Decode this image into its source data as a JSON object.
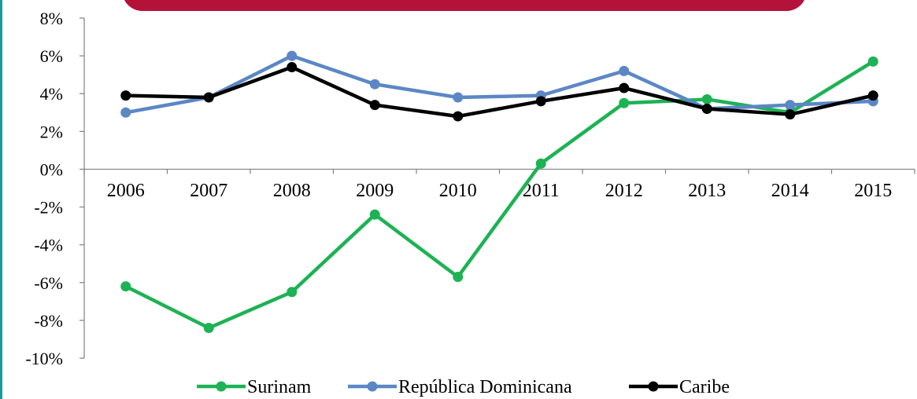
{
  "chart_data": {
    "type": "line",
    "title": "",
    "xlabel": "",
    "ylabel": "",
    "x": [
      "2006",
      "2007",
      "2008",
      "2009",
      "2010",
      "2011",
      "2012",
      "2013",
      "2014",
      "2015"
    ],
    "ylim": [
      -10,
      8
    ],
    "yticks": [
      8,
      6,
      4,
      2,
      0,
      -2,
      -4,
      -6,
      -8,
      -10
    ],
    "ytick_labels": [
      "8%",
      "6%",
      "4%",
      "2%",
      "0%",
      "-2%",
      "-4%",
      "-6%",
      "-8%",
      "-10%"
    ],
    "grid": false,
    "legend_position": "bottom",
    "series": [
      {
        "name": "Surinam",
        "color": "#1db254",
        "values": [
          -6.2,
          -8.4,
          -6.5,
          -2.4,
          -5.7,
          0.3,
          3.5,
          3.7,
          3.0,
          5.7
        ]
      },
      {
        "name": "República Dominicana",
        "color": "#5b87c5",
        "values": [
          3.0,
          3.8,
          6.0,
          4.5,
          3.8,
          3.9,
          5.2,
          3.2,
          3.4,
          3.6
        ]
      },
      {
        "name": "Caribe",
        "color": "#000000",
        "values": [
          3.9,
          3.8,
          5.4,
          3.4,
          2.8,
          3.6,
          4.3,
          3.2,
          2.9,
          3.9
        ]
      }
    ]
  }
}
